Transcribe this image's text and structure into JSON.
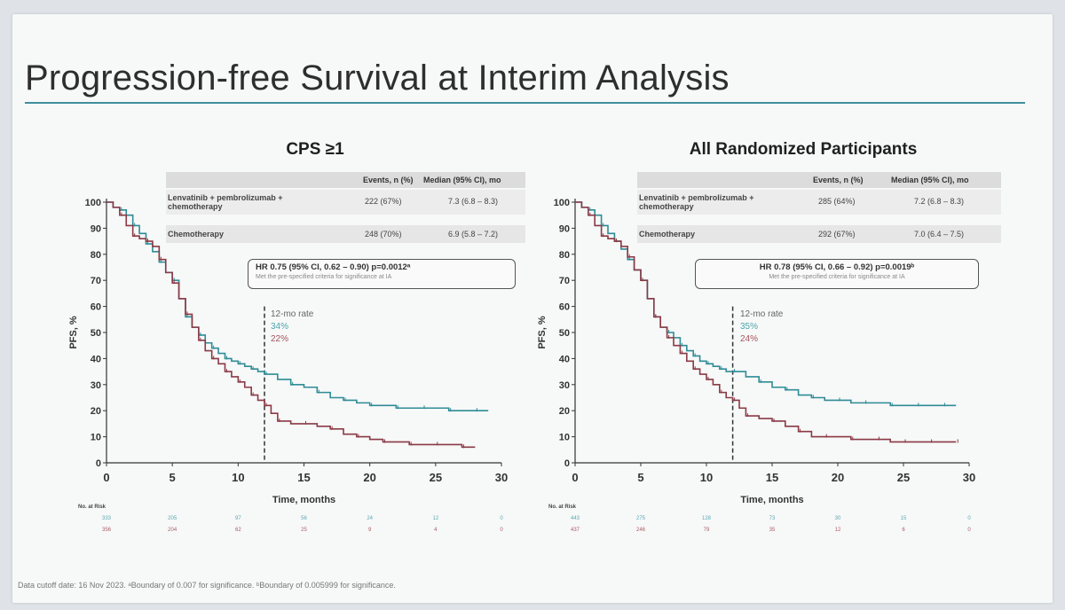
{
  "title": "Progression-free Survival at Interim Analysis",
  "footnote": "Data cutoff date: 16 Nov 2023. ᵃBoundary of 0.007 for significance. ᵇBoundary of 0.005999 for significance.",
  "colors": {
    "lenvatinib": "#2f8c96",
    "chemotherapy": "#8a3a45",
    "accent_rule": "#3f8f9c"
  },
  "table_headers": {
    "events": "Events, n (%)",
    "median": "Median (95% CI), mo"
  },
  "arms": {
    "lenvatinib": "Lenvatinib + pembrolizumab + chemotherapy",
    "chemotherapy": "Chemotherapy"
  },
  "risk_label": "No. at Risk",
  "rate_label": "12-mo rate",
  "chart_data": [
    {
      "type": "line",
      "title": "CPS ≥1",
      "xlabel": "Time, months",
      "ylabel": "PFS, %",
      "xlim": [
        0,
        30
      ],
      "ylim": [
        0,
        100
      ],
      "xticks": [
        0,
        5,
        10,
        15,
        20,
        25,
        30
      ],
      "yticks": [
        0,
        10,
        20,
        30,
        40,
        50,
        60,
        70,
        80,
        90,
        100
      ],
      "events": [
        "222 (67%)",
        "248 (70%)"
      ],
      "medians": [
        "7.3 (6.8 – 8.3)",
        "6.9 (5.8 – 7.2)"
      ],
      "hr_text": "HR 0.75 (95% CI, 0.62 – 0.90) p=0.0012ᵃ",
      "hr_sub": "Met the pre-specified criteria for significance at IA",
      "rate_12mo": [
        "34%",
        "22%"
      ],
      "risk": [
        [
          "333",
          "205",
          "97",
          "56",
          "24",
          "12",
          "0"
        ],
        [
          "356",
          "204",
          "62",
          "25",
          "9",
          "4",
          "0"
        ]
      ],
      "series": [
        {
          "name": "Lenvatinib + pembrolizumab + chemotherapy",
          "x": [
            0,
            0.5,
            1,
            1.5,
            2,
            2.5,
            3,
            3.5,
            4,
            4.5,
            5,
            5.5,
            6,
            6.5,
            7,
            7.5,
            8,
            8.5,
            9,
            9.5,
            10,
            10.5,
            11,
            11.5,
            12,
            13,
            14,
            15,
            16,
            17,
            18,
            19,
            20,
            21,
            22,
            23,
            24,
            25,
            26,
            27,
            28,
            29
          ],
          "y": [
            100,
            98,
            97,
            95,
            91,
            88,
            84,
            81,
            77,
            73,
            70,
            63,
            56,
            52,
            49,
            46,
            44,
            42,
            40,
            39,
            38,
            37,
            36,
            35,
            34,
            32,
            30,
            29,
            27,
            25,
            24,
            23,
            22,
            22,
            21,
            21,
            21,
            21,
            20,
            20,
            20,
            20
          ]
        },
        {
          "name": "Chemotherapy",
          "x": [
            0,
            0.5,
            1,
            1.5,
            2,
            2.5,
            3,
            3.5,
            4,
            4.5,
            5,
            5.5,
            6,
            6.5,
            7,
            7.5,
            8,
            8.5,
            9,
            9.5,
            10,
            10.5,
            11,
            11.5,
            12,
            12.5,
            13,
            14,
            15,
            16,
            17,
            18,
            19,
            20,
            21,
            22,
            23,
            24,
            25,
            26,
            27,
            28
          ],
          "y": [
            100,
            98,
            95,
            91,
            87,
            86,
            85,
            83,
            78,
            73,
            69,
            63,
            57,
            52,
            47,
            43,
            40,
            38,
            35,
            33,
            31,
            29,
            26,
            24,
            22,
            19,
            16,
            15,
            15,
            14,
            13,
            11,
            10,
            9,
            8,
            8,
            7,
            7,
            7,
            7,
            6,
            6
          ]
        }
      ]
    },
    {
      "type": "line",
      "title": "All Randomized Participants",
      "xlabel": "Time, months",
      "ylabel": "PFS, %",
      "xlim": [
        0,
        30
      ],
      "ylim": [
        0,
        100
      ],
      "xticks": [
        0,
        5,
        10,
        15,
        20,
        25,
        30
      ],
      "yticks": [
        0,
        10,
        20,
        30,
        40,
        50,
        60,
        70,
        80,
        90,
        100
      ],
      "events": [
        "285 (64%)",
        "292 (67%)"
      ],
      "medians": [
        "7.2 (6.8 – 8.3)",
        "7.0 (6.4 – 7.5)"
      ],
      "hr_text": "HR 0.78 (95% CI, 0.66 – 0.92) p=0.0019ᵇ",
      "hr_sub": "Met the pre-specified criteria for significance at IA",
      "rate_12mo": [
        "35%",
        "24%"
      ],
      "risk": [
        [
          "443",
          "275",
          "128",
          "73",
          "30",
          "15",
          "0"
        ],
        [
          "437",
          "246",
          "79",
          "35",
          "12",
          "6",
          "0"
        ]
      ],
      "series": [
        {
          "name": "Lenvatinib + pembrolizumab + chemotherapy",
          "x": [
            0,
            0.5,
            1,
            1.5,
            2,
            2.5,
            3,
            3.5,
            4,
            4.5,
            5,
            5.5,
            6,
            6.5,
            7,
            7.5,
            8,
            8.5,
            9,
            9.5,
            10,
            10.5,
            11,
            11.5,
            12,
            13,
            14,
            15,
            16,
            17,
            18,
            19,
            20,
            21,
            22,
            23,
            24,
            25,
            26,
            27,
            28,
            29
          ],
          "y": [
            100,
            98,
            97,
            95,
            91,
            88,
            85,
            82,
            78,
            74,
            70,
            63,
            56,
            52,
            50,
            48,
            45,
            43,
            41,
            39,
            38,
            37,
            36,
            35,
            35,
            33,
            31,
            29,
            28,
            26,
            25,
            24,
            24,
            23,
            23,
            23,
            22,
            22,
            22,
            22,
            22,
            22
          ]
        },
        {
          "name": "Chemotherapy",
          "x": [
            0,
            0.5,
            1,
            1.5,
            2,
            2.5,
            3,
            3.5,
            4,
            4.5,
            5,
            5.5,
            6,
            6.5,
            7,
            7.5,
            8,
            8.5,
            9,
            9.5,
            10,
            10.5,
            11,
            11.5,
            12,
            12.5,
            13,
            14,
            15,
            16,
            17,
            18,
            19,
            20,
            21,
            22,
            23,
            24,
            25,
            26,
            27,
            28,
            29
          ],
          "y": [
            100,
            98,
            95,
            91,
            87,
            86,
            85,
            83,
            79,
            74,
            70,
            63,
            56,
            52,
            48,
            45,
            42,
            39,
            36,
            34,
            32,
            30,
            27,
            25,
            24,
            21,
            18,
            17,
            16,
            14,
            12,
            10,
            10,
            10,
            9,
            9,
            9,
            8,
            8,
            8,
            8,
            8,
            8
          ]
        }
      ]
    }
  ]
}
